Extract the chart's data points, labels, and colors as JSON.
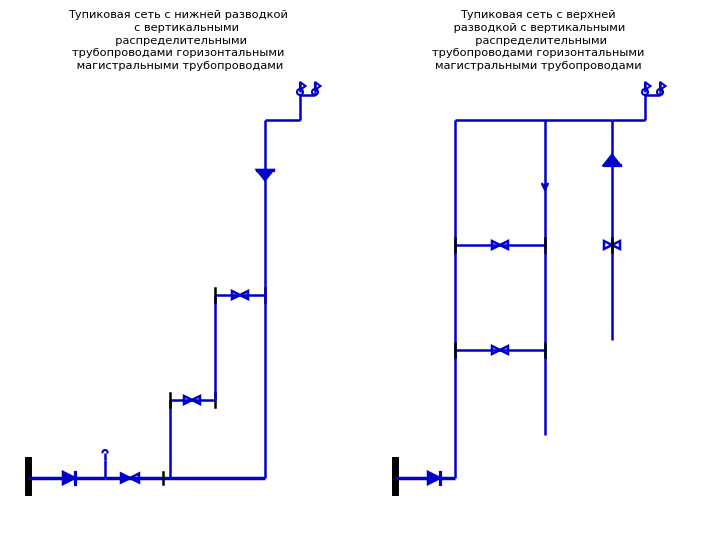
{
  "title_left": "Тупиковая сеть с нижней разводкой\n     с вертикальными\n  распределительными\nтрубопроводами горизонтальными\n магистральными трубопроводами",
  "title_right": "Тупиковая сеть с верхней\n разводкой с вертикальными\n  распределительными\nтрубопроводами горизонтальными\nмагистральными трубопроводами",
  "pipe_color": "#0000CC",
  "lw": 1.8,
  "tlw": 2.5,
  "text_color": "#000000",
  "bg_color": "#FFFFFF",
  "bk_color": "#000000"
}
